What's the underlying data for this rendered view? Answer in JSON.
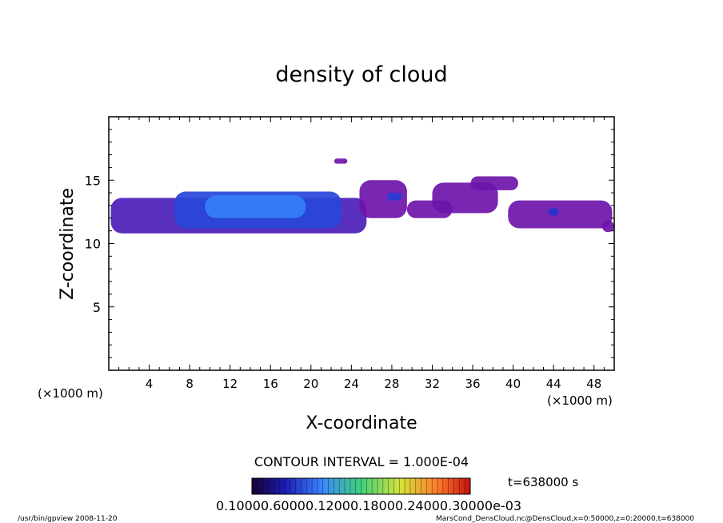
{
  "chart_data": {
    "type": "heatmap",
    "title": "density of cloud",
    "xlabel": "X-coordinate",
    "ylabel": "Z-coordinate",
    "x_unit": "(×1000 m)",
    "x_unit_right": "(×1000 m)",
    "xlim": [
      0,
      50
    ],
    "ylim": [
      0,
      20
    ],
    "x_ticks": [
      4,
      8,
      12,
      16,
      20,
      24,
      28,
      32,
      36,
      40,
      44,
      48
    ],
    "y_ticks": [
      5,
      10,
      15
    ],
    "contour_interval_label": "CONTOUR INTERVAL = 1.000E-04",
    "time_label": "t=638000 s",
    "colorbar_labels": "0.10000.60000.12000.18000.24000.30000e-03",
    "colorbar_min": 0.0001,
    "colorbar_max": 0.0003,
    "regions": [
      {
        "x": [
          0.2,
          25.5
        ],
        "z": [
          10.8,
          13.6
        ],
        "level": 0.00012
      },
      {
        "x": [
          6.5,
          23.0
        ],
        "z": [
          11.2,
          14.1
        ],
        "level": 0.00017
      },
      {
        "x": [
          9.5,
          19.5
        ],
        "z": [
          12.0,
          13.8
        ],
        "level": 0.00022
      },
      {
        "x": [
          22.3,
          23.6
        ],
        "z": [
          16.3,
          16.7
        ],
        "level": 0.0001
      },
      {
        "x": [
          24.8,
          29.5
        ],
        "z": [
          12.0,
          15.0
        ],
        "level": 0.0001
      },
      {
        "x": [
          27.5,
          29.0
        ],
        "z": [
          13.4,
          14.0
        ],
        "level": 0.00016
      },
      {
        "x": [
          29.5,
          34.0
        ],
        "z": [
          12.0,
          13.4
        ],
        "level": 0.0001
      },
      {
        "x": [
          32.0,
          38.5
        ],
        "z": [
          12.4,
          14.8
        ],
        "level": 0.0001
      },
      {
        "x": [
          35.8,
          40.5
        ],
        "z": [
          14.2,
          15.3
        ],
        "level": 0.0001
      },
      {
        "x": [
          39.5,
          49.8
        ],
        "z": [
          11.2,
          13.4
        ],
        "level": 0.0001
      },
      {
        "x": [
          43.5,
          44.5
        ],
        "z": [
          12.2,
          12.8
        ],
        "level": 0.00015
      },
      {
        "x": [
          48.8,
          50.0
        ],
        "z": [
          10.9,
          11.8
        ],
        "level": 0.0001
      }
    ]
  },
  "footer": {
    "left": "/usr/bin/gpview  2008-11-20",
    "right": "MarsCond_DensCloud.nc@DensCloud,x=0:50000,z=0:20000,t=638000"
  }
}
